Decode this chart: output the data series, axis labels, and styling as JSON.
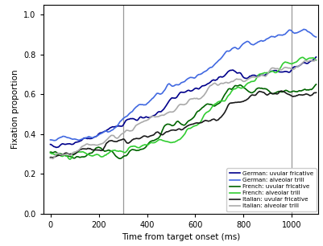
{
  "title": "",
  "xlabel": "Time from target onset (ms)",
  "ylabel": "Fixation proportion",
  "xlim": [
    -30,
    1110
  ],
  "ylim": [
    0.0,
    1.05
  ],
  "xticks": [
    0,
    200,
    400,
    600,
    800,
    1000
  ],
  "yticks": [
    0.0,
    0.2,
    0.4,
    0.6,
    0.8,
    1.0
  ],
  "vlines": [
    300,
    1000
  ],
  "vline_color": "#999999",
  "series": [
    {
      "label": "German: uvular fricative",
      "color": "#00008B",
      "linewidth": 1.2
    },
    {
      "label": "German: alveolar trill",
      "color": "#4169E1",
      "linewidth": 1.2
    },
    {
      "label": "French: uvular fricative",
      "color": "#006400",
      "linewidth": 1.2
    },
    {
      "label": "French: alveolar trill",
      "color": "#32CD32",
      "linewidth": 1.2
    },
    {
      "label": "Italian: uvular fricative",
      "color": "#1a1a1a",
      "linewidth": 1.2
    },
    {
      "label": "Italian: alveolar trill",
      "color": "#AAAAAA",
      "linewidth": 1.2
    }
  ]
}
